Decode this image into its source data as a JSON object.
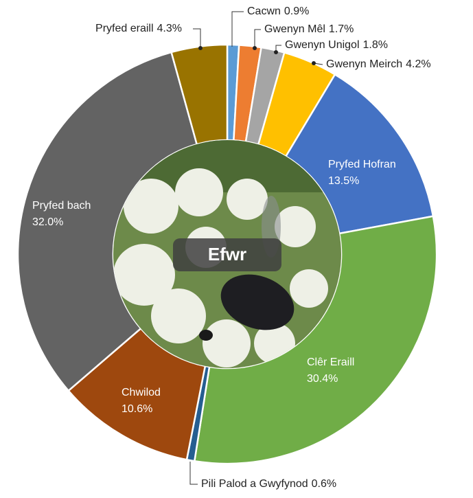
{
  "chart_data": {
    "type": "donut",
    "center_label": "Efwr",
    "categories": [
      "Cacwn",
      "Gwenyn Mêl",
      "Gwenyn Unigol",
      "Gwenyn Meirch",
      "Pryfed Hofran",
      "Clêr Eraill",
      "Pili Palod a Gwyfynod",
      "Chwilod",
      "Pryfed bach",
      "Pryfed eraill"
    ],
    "values": [
      0.9,
      1.7,
      1.8,
      4.2,
      13.5,
      30.4,
      0.6,
      10.6,
      32.0,
      4.3
    ],
    "value_labels": [
      "0.9%",
      "1.7%",
      "1.8%",
      "4.2%",
      "13.5%",
      "30.4%",
      "0.6%",
      "10.6%",
      "32.0%",
      "4.3%"
    ],
    "colors": [
      "#5b9bd5",
      "#ed7d31",
      "#a5a5a5",
      "#ffc000",
      "#4472c4",
      "#70ad47",
      "#255e91",
      "#9e480e",
      "#636363",
      "#997300"
    ]
  }
}
